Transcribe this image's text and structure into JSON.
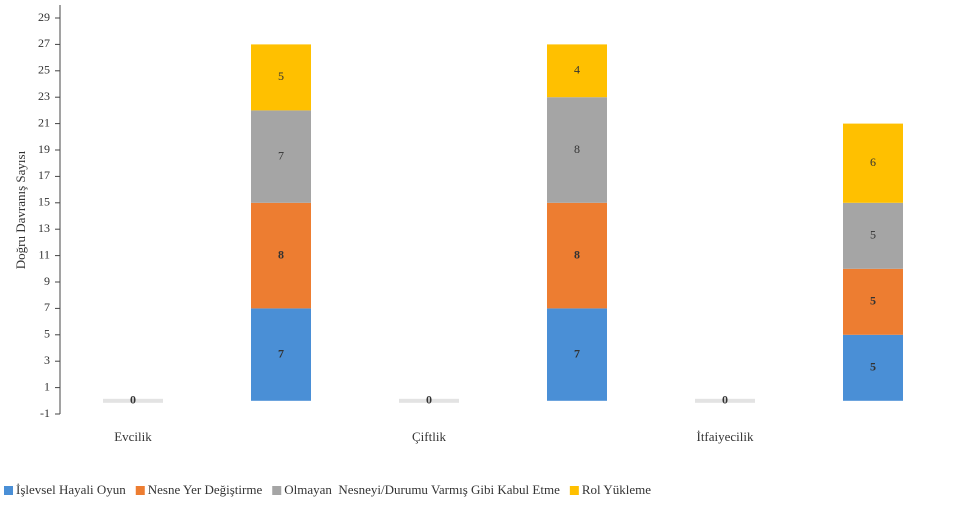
{
  "chart_data": {
    "type": "stacked-bar",
    "y_label": "Doğru Davranış Sayısı",
    "categories": [
      "Evcilik",
      null,
      "Çiftlik",
      null,
      "İtfaiyecilik",
      null
    ],
    "series": [
      {
        "name": "İşlevsel Hayali Oyun",
        "color": "#4a8fd6",
        "values": [
          0,
          7,
          0,
          7,
          0,
          5
        ]
      },
      {
        "name": "Nesne Yer Değiştirme",
        "color": "#ed7d31",
        "values": [
          0,
          8,
          0,
          8,
          0,
          5
        ]
      },
      {
        "name": "Olmayan  Nesneyi/Durumu Varmış Gibi Kabul Etme",
        "color": "#a5a5a5",
        "values": [
          0,
          7,
          0,
          8,
          0,
          5
        ]
      },
      {
        "name": "Rol Yükleme",
        "color": "#ffc000",
        "values": [
          0,
          5,
          0,
          4,
          0,
          6
        ]
      }
    ],
    "ylim": [
      -1,
      30
    ],
    "yticks": [
      -1,
      1,
      3,
      5,
      7,
      9,
      11,
      13,
      15,
      17,
      19,
      21,
      23,
      25,
      27,
      29
    ],
    "grid": false,
    "legend": "bottom"
  }
}
